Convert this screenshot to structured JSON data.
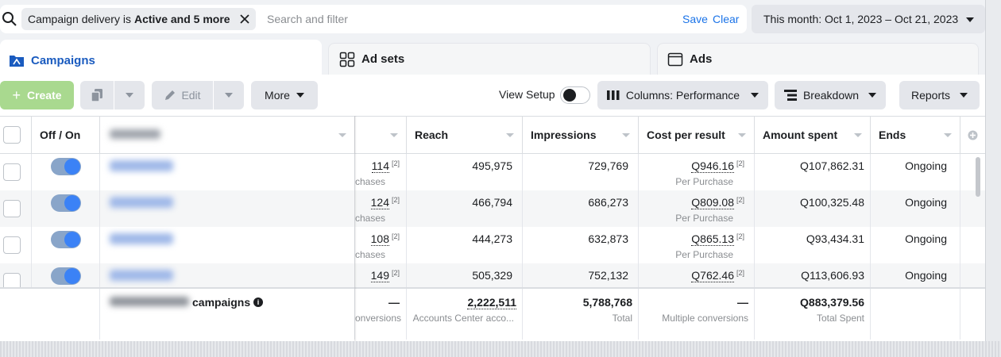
{
  "filter": {
    "chip_prefix": "Campaign delivery is",
    "chip_bold": "Active and 5 more",
    "placeholder": "Search and filter",
    "save": "Save",
    "clear": "Clear",
    "date_range": "This month: Oct 1, 2023 – Oct 21, 2023"
  },
  "tabs": [
    {
      "label": "Campaigns",
      "icon": "folder-icon"
    },
    {
      "label": "Ad sets",
      "icon": "grid-icon"
    },
    {
      "label": "Ads",
      "icon": "ad-icon"
    }
  ],
  "toolbar": {
    "create": "Create",
    "edit": "Edit",
    "more": "More",
    "view_setup": "View Setup",
    "columns": "Columns: Performance",
    "breakdown": "Breakdown",
    "reports": "Reports"
  },
  "table": {
    "headers": {
      "off_on": "Off / On",
      "reach": "Reach",
      "impressions": "Impressions",
      "cost_per_result": "Cost per result",
      "amount_spent": "Amount spent",
      "ends": "Ends"
    },
    "rows": [
      {
        "results": "114",
        "results_sup": "[2]",
        "results_sub": "chases",
        "reach": "495,975",
        "impressions": "729,769",
        "cpr": "Q946.16",
        "cpr_sup": "[2]",
        "cpr_sub": "Per Purchase",
        "spent": "Q107,862.31",
        "ends": "Ongoing"
      },
      {
        "results": "124",
        "results_sup": "[2]",
        "results_sub": "chases",
        "reach": "466,794",
        "impressions": "686,273",
        "cpr": "Q809.08",
        "cpr_sup": "[2]",
        "cpr_sub": "Per Purchase",
        "spent": "Q100,325.48",
        "ends": "Ongoing"
      },
      {
        "results": "108",
        "results_sup": "[2]",
        "results_sub": "chases",
        "reach": "444,273",
        "impressions": "632,873",
        "cpr": "Q865.13",
        "cpr_sup": "[2]",
        "cpr_sub": "Per Purchase",
        "spent": "Q93,434.31",
        "ends": "Ongoing"
      },
      {
        "results": "149",
        "results_sup": "[2]",
        "results_sub": "",
        "reach": "505,329",
        "impressions": "752,132",
        "cpr": "Q762.46",
        "cpr_sup": "[2]",
        "cpr_sub": "",
        "spent": "Q113,606.93",
        "ends": "Ongoing"
      }
    ],
    "footer": {
      "label": "campaigns",
      "results": "—",
      "results_sub": "onversions",
      "reach": "2,222,511",
      "reach_sub": "Accounts Center acco...",
      "impressions": "5,788,768",
      "impressions_sub": "Total",
      "cpr": "—",
      "cpr_sub": "Multiple conversions",
      "spent": "Q883,379.56",
      "spent_sub": "Total Spent"
    }
  }
}
